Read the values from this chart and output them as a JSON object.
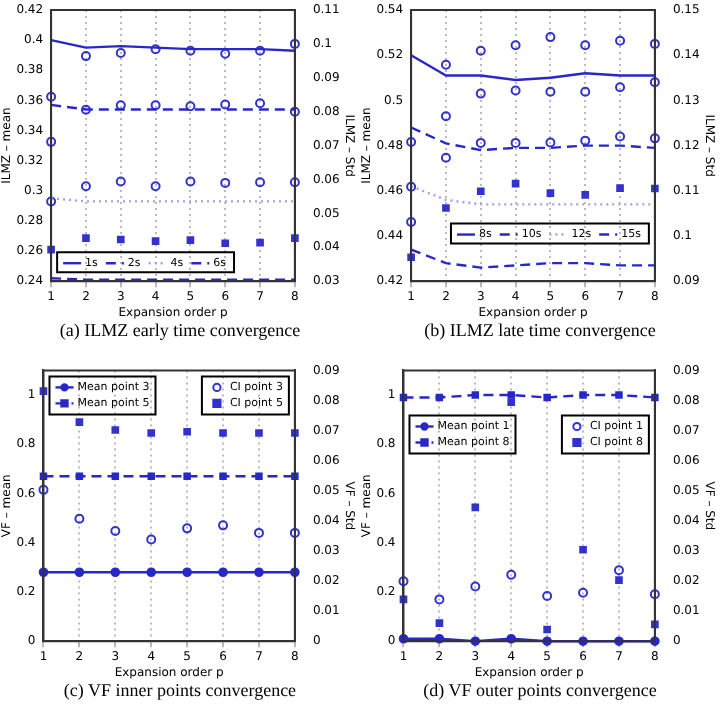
{
  "chart_data": [
    {
      "type": "line",
      "title": "(a) ILMZ early time convergence",
      "xlabel": "Expansion order p",
      "ylabel": "ILMZ – mean",
      "y2label": "ILMZ – Std",
      "x": [
        1,
        2,
        3,
        4,
        5,
        6,
        7,
        8
      ],
      "xlim": [
        1,
        8
      ],
      "xticks": [
        1,
        2,
        3,
        4,
        5,
        6,
        7,
        8
      ],
      "ylim": [
        0.24,
        0.42
      ],
      "yticks": [
        0.24,
        0.26,
        0.28,
        0.3,
        0.32,
        0.34,
        0.36,
        0.38,
        0.4,
        0.42
      ],
      "y2lim": [
        0.03,
        0.11
      ],
      "y2ticks": [
        0.03,
        0.04,
        0.05,
        0.06,
        0.07,
        0.08,
        0.09,
        0.1,
        0.11
      ],
      "grid": "x",
      "legend": "bottom left",
      "marker": "none",
      "series": [
        {
          "name": "1s",
          "type": "line",
          "line_style": "solid",
          "color": "#2828c8",
          "values": [
            0.4,
            0.395,
            0.396,
            0.395,
            0.394,
            0.394,
            0.394,
            0.393
          ]
        },
        {
          "name": "2s",
          "type": "line",
          "line_style": "dashed",
          "color": "#2828c8",
          "values": [
            0.357,
            0.354,
            0.354,
            0.354,
            0.354,
            0.354,
            0.354,
            0.354
          ]
        },
        {
          "name": "4s",
          "type": "line",
          "line_style": "dotted",
          "color": "#a0a0e8",
          "values": [
            0.295,
            0.293,
            0.293,
            0.293,
            0.293,
            0.293,
            0.293,
            0.293
          ]
        },
        {
          "name": "6s",
          "type": "line",
          "line_style": "dashed",
          "color": "#2828c8",
          "values": [
            0.242,
            0.241,
            0.241,
            0.241,
            0.241,
            0.241,
            0.241,
            0.241
          ]
        },
        {
          "type": "scatter",
          "axis": "y2",
          "marker": "circle",
          "color": "#3333cc",
          "values": [
            0.0844,
            0.0964,
            0.0973,
            0.0984,
            0.098,
            0.0971,
            0.098,
            0.1
          ]
        },
        {
          "type": "scatter",
          "axis": "y2",
          "marker": "circle",
          "color": "#3333cc",
          "values": [
            0.0711,
            0.0806,
            0.0819,
            0.0819,
            0.0816,
            0.0821,
            0.0825,
            0.08
          ]
        },
        {
          "type": "scatter",
          "axis": "y2",
          "marker": "circle",
          "color": "#3333cc",
          "values": [
            0.0535,
            0.058,
            0.0594,
            0.058,
            0.0594,
            0.059,
            0.0592,
            0.0592
          ]
        },
        {
          "type": "scatter",
          "axis": "y2",
          "marker": "square",
          "color": "#3333cc",
          "values": [
            0.0393,
            0.0427,
            0.0423,
            0.0418,
            0.0421,
            0.0412,
            0.0414,
            0.0427
          ]
        }
      ]
    },
    {
      "type": "line",
      "title": "(b) ILMZ late time convergence",
      "xlabel": "Expansion order p",
      "ylabel": "ILMZ – mean",
      "y2label": "ILMZ – Std",
      "x": [
        1,
        2,
        3,
        4,
        5,
        6,
        7,
        8
      ],
      "xlim": [
        1,
        8
      ],
      "xticks": [
        1,
        2,
        3,
        4,
        5,
        6,
        7,
        8
      ],
      "ylim": [
        0.42,
        0.54
      ],
      "yticks": [
        0.42,
        0.44,
        0.46,
        0.48,
        0.5,
        0.52,
        0.54
      ],
      "y2lim": [
        0.09,
        0.15
      ],
      "y2ticks": [
        0.09,
        0.1,
        0.11,
        0.12,
        0.13,
        0.14,
        0.15
      ],
      "grid": "x",
      "legend": "bottom right",
      "marker": "none",
      "series": [
        {
          "name": "8s",
          "type": "line",
          "line_style": "solid",
          "color": "#2828c8",
          "values": [
            0.52,
            0.511,
            0.511,
            0.509,
            0.51,
            0.512,
            0.511,
            0.511
          ]
        },
        {
          "name": "10s",
          "type": "line",
          "line_style": "dashed",
          "color": "#2828c8",
          "values": [
            0.488,
            0.481,
            0.478,
            0.479,
            0.479,
            0.48,
            0.48,
            0.479
          ]
        },
        {
          "name": "12s",
          "type": "line",
          "line_style": "dotted",
          "color": "#a0a0e8",
          "values": [
            0.462,
            0.456,
            0.454,
            0.454,
            0.454,
            0.454,
            0.454,
            0.454
          ]
        },
        {
          "name": "15s",
          "type": "line",
          "line_style": "dashed",
          "color": "#2828c8",
          "values": [
            0.434,
            0.428,
            0.426,
            0.427,
            0.428,
            0.428,
            0.427,
            0.427
          ]
        },
        {
          "type": "scatter",
          "axis": "y2",
          "marker": "circle",
          "color": "#3333cc",
          "values": [
            0.1208,
            0.1379,
            0.141,
            0.1422,
            0.144,
            0.1422,
            0.1432,
            0.1425
          ]
        },
        {
          "type": "scatter",
          "axis": "y2",
          "marker": "circle",
          "color": "#3333cc",
          "values": [
            0.1109,
            0.1265,
            0.1315,
            0.1322,
            0.1319,
            0.1319,
            0.1329,
            0.134
          ]
        },
        {
          "type": "scatter",
          "axis": "y2",
          "marker": "circle",
          "color": "#3333cc",
          "values": [
            0.1031,
            0.1173,
            0.1206,
            0.1206,
            0.1207,
            0.1211,
            0.122,
            0.1216
          ]
        },
        {
          "type": "scatter",
          "axis": "y2",
          "marker": "square",
          "color": "#3333cc",
          "values": [
            0.0953,
            0.1062,
            0.1099,
            0.1116,
            0.1095,
            0.1091,
            0.1106,
            0.1105
          ]
        }
      ]
    },
    {
      "type": "line",
      "title": "(c) VF inner points convergence",
      "xlabel": "Expansion order p",
      "ylabel": "VF – mean",
      "y2label": "VF – Std",
      "x": [
        1,
        2,
        3,
        4,
        5,
        6,
        7,
        8
      ],
      "xlim": [
        1,
        8
      ],
      "xticks": [
        1,
        2,
        3,
        4,
        5,
        6,
        7,
        8
      ],
      "ylim": [
        0,
        1.1
      ],
      "yticks": [
        0,
        0.2,
        0.4,
        0.6,
        0.8,
        1
      ],
      "y2lim": [
        0,
        0.09
      ],
      "y2ticks": [
        0,
        0.01,
        0.02,
        0.03,
        0.04,
        0.05,
        0.06,
        0.07,
        0.08,
        0.09
      ],
      "grid": "x",
      "legend": "top",
      "series": [
        {
          "name": "Mean point 3",
          "type": "line",
          "line_style": "solid",
          "marker": "circle",
          "color": "#2828c8",
          "values": [
            0.28,
            0.28,
            0.28,
            0.28,
            0.28,
            0.28,
            0.28,
            0.28
          ]
        },
        {
          "name": "Mean point 5",
          "type": "line",
          "line_style": "dashed",
          "marker": "square",
          "color": "#2828c8",
          "values": [
            0.67,
            0.67,
            0.67,
            0.67,
            0.67,
            0.67,
            0.67,
            0.67
          ]
        },
        {
          "name": "CI point 3",
          "type": "scatter",
          "axis": "y2",
          "marker": "circle",
          "color": "#3333cc",
          "values": [
            0.0503,
            0.0407,
            0.0366,
            0.0338,
            0.0375,
            0.0385,
            0.036,
            0.036
          ]
        },
        {
          "name": "CI point 5",
          "type": "scatter",
          "axis": "y2",
          "marker": "square",
          "color": "#3333cc",
          "values": [
            0.0831,
            0.0728,
            0.0702,
            0.0692,
            0.0696,
            0.0692,
            0.0692,
            0.0692
          ]
        }
      ]
    },
    {
      "type": "line",
      "title": "(d) VF outer points convergence",
      "xlabel": "Expansion order p",
      "ylabel": "VF – mean",
      "y2label": "VF – Std",
      "x": [
        1,
        2,
        3,
        4,
        5,
        6,
        7,
        8
      ],
      "xlim": [
        1,
        8
      ],
      "xticks": [
        1,
        2,
        3,
        4,
        5,
        6,
        7,
        8
      ],
      "ylim": [
        0,
        1.1
      ],
      "yticks": [
        0,
        0.2,
        0.4,
        0.6,
        0.8,
        1
      ],
      "y2lim": [
        0,
        0.09
      ],
      "y2ticks": [
        0,
        0.01,
        0.02,
        0.03,
        0.04,
        0.05,
        0.06,
        0.07,
        0.08,
        0.09
      ],
      "grid": "x",
      "legend": "top",
      "series": [
        {
          "name": "Mean point 1",
          "type": "line",
          "line_style": "solid",
          "marker": "circle",
          "color": "#2828c8",
          "values": [
            0.01,
            0.01,
            0,
            0.01,
            0,
            0,
            0,
            0
          ]
        },
        {
          "name": "Mean point 8",
          "type": "line",
          "line_style": "dashed",
          "marker": "square",
          "color": "#2828c8",
          "values": [
            0.99,
            0.99,
            1,
            1,
            0.99,
            1,
            1,
            0.99
          ]
        },
        {
          "name": "CI point 1",
          "type": "scatter",
          "axis": "y2",
          "marker": "circle",
          "color": "#3333cc",
          "values": [
            0.0199,
            0.0139,
            0.0182,
            0.0221,
            0.015,
            0.0161,
            0.0236,
            0.0156
          ]
        },
        {
          "name": "CI point 8",
          "type": "scatter",
          "axis": "y2",
          "marker": "square",
          "color": "#3333cc",
          "values": [
            0.0139,
            0.006,
            0.0445,
            0.0794,
            0.0039,
            0.0304,
            0.0203,
            0.0056
          ]
        }
      ]
    }
  ]
}
